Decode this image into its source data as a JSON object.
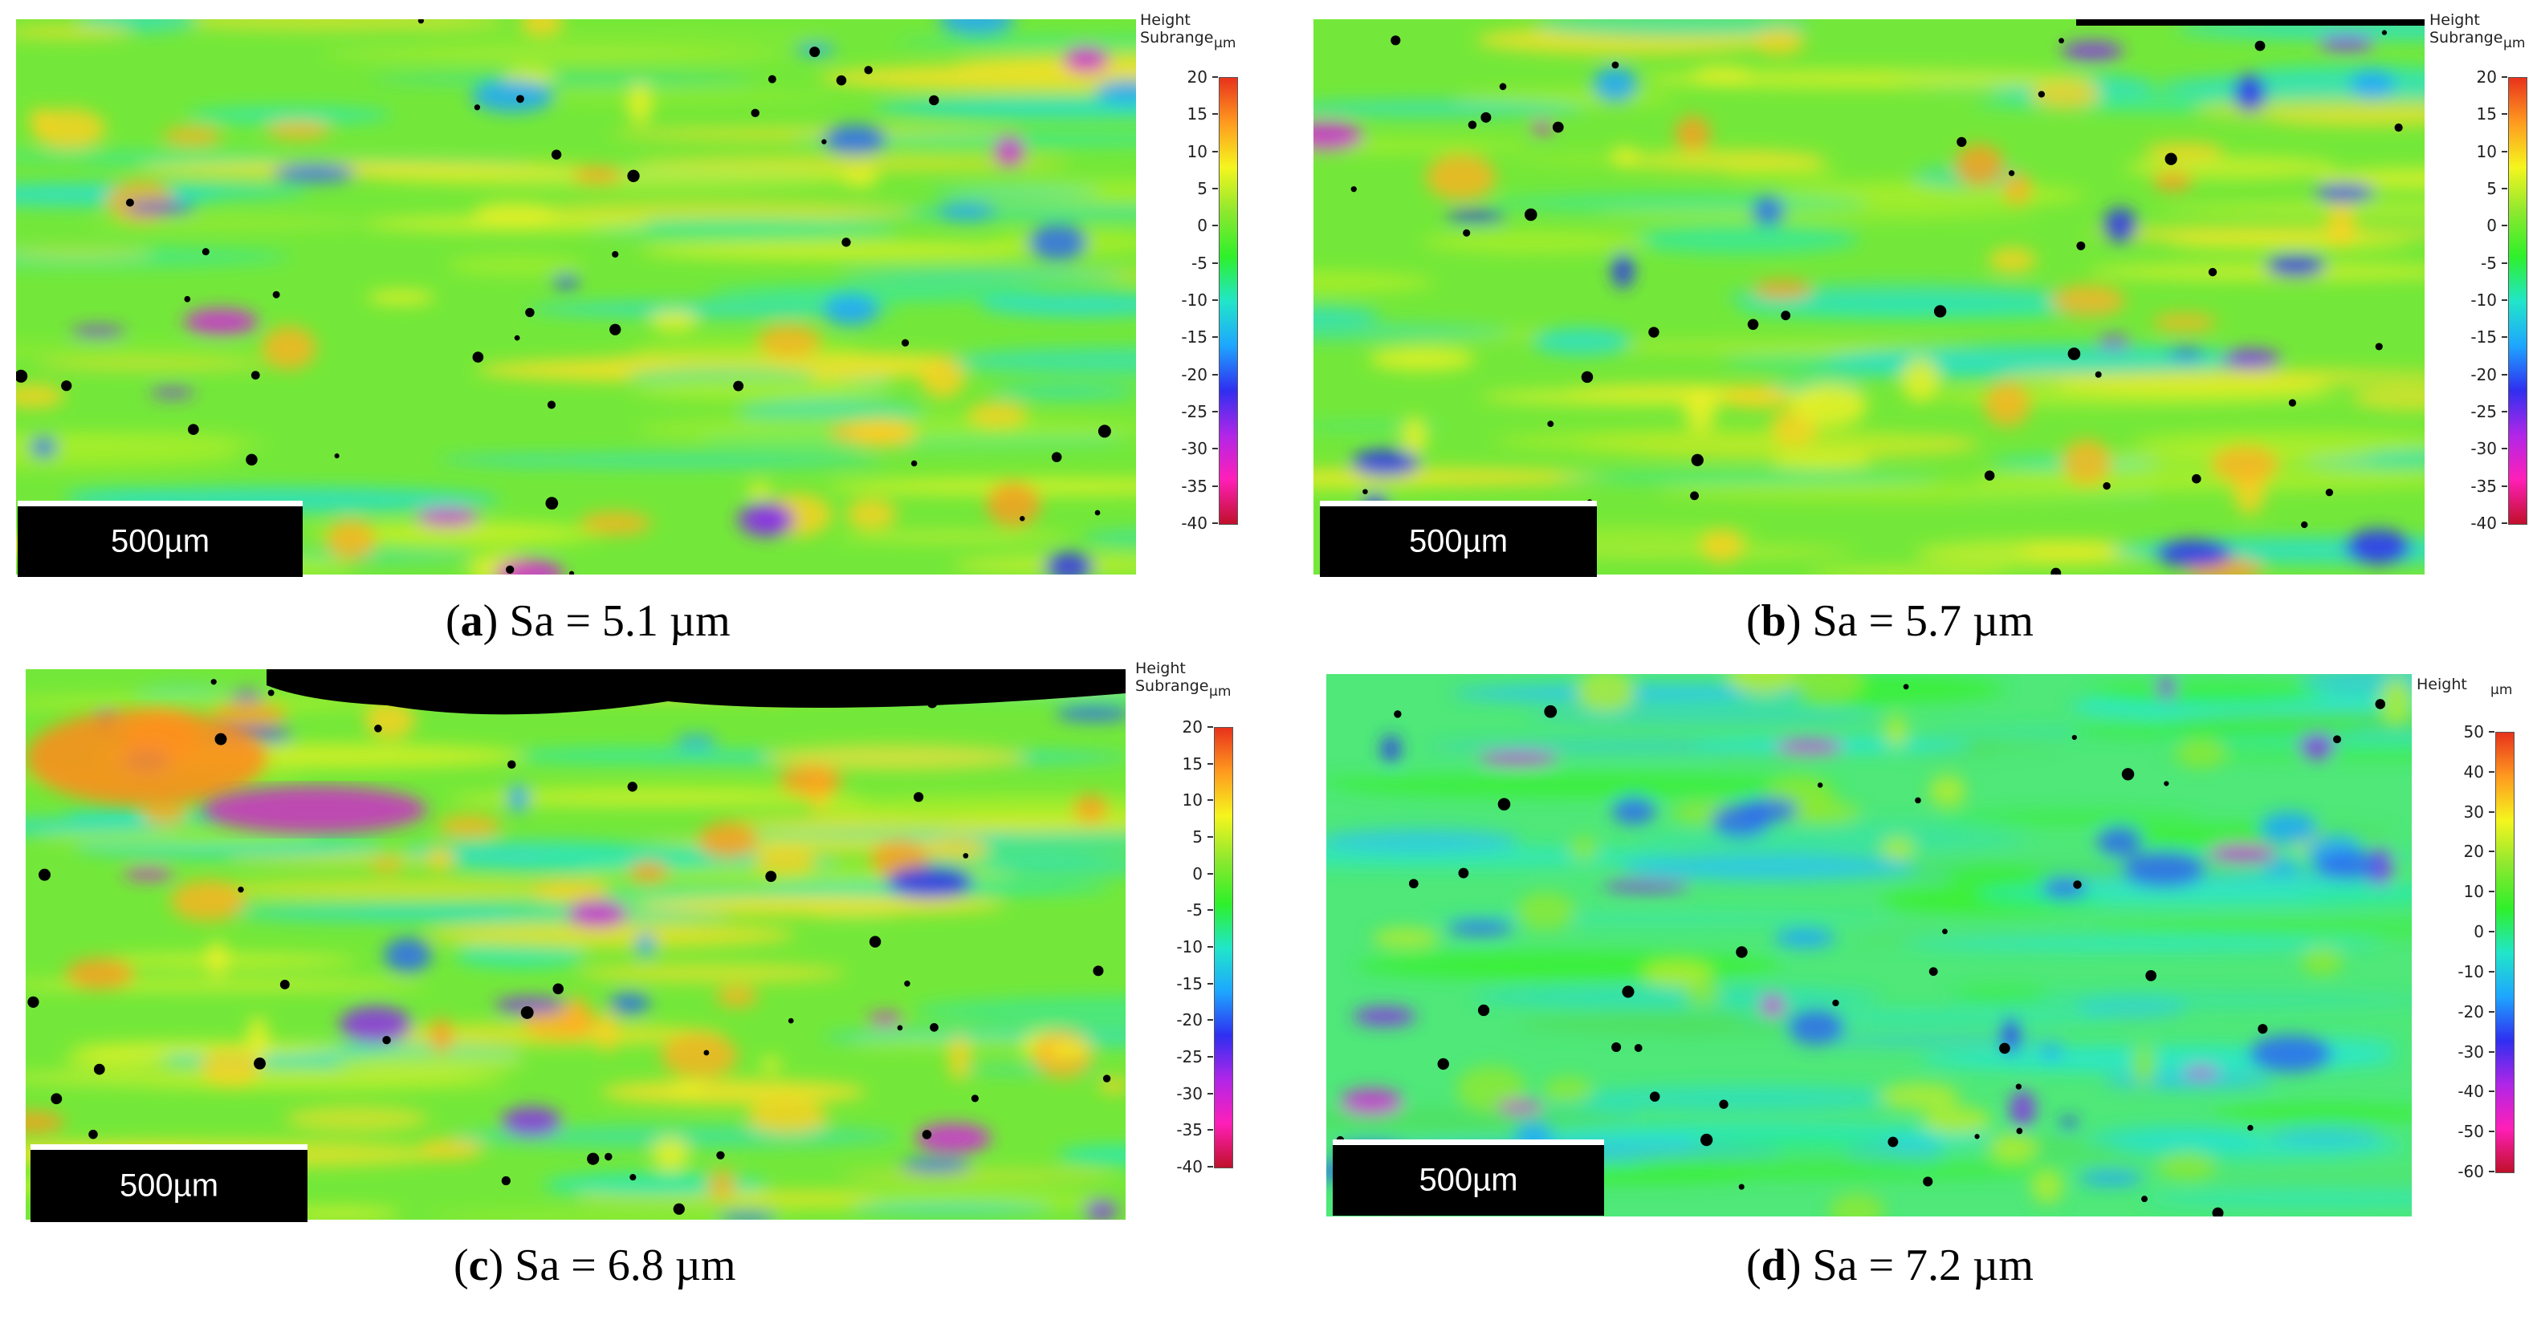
{
  "panels": [
    {
      "id": "a",
      "scalebar_label": "500µm",
      "legend_title_lines": [
        "Height",
        "Subrange"
      ],
      "legend_unit": "µm",
      "legend_ticks": [
        "20",
        "15",
        "10",
        "5",
        "0",
        "-5",
        "-10",
        "-15",
        "-20",
        "-25",
        "-30",
        "-35",
        "-40"
      ],
      "caption_letter": "a",
      "caption_text": " Sa = 5.1 µm"
    },
    {
      "id": "b",
      "scalebar_label": "500µm",
      "legend_title_lines": [
        "Height",
        "Subrange"
      ],
      "legend_unit": "µm",
      "legend_ticks": [
        "20",
        "15",
        "10",
        "5",
        "0",
        "-5",
        "-10",
        "-15",
        "-20",
        "-25",
        "-30",
        "-35",
        "-40"
      ],
      "caption_letter": "b",
      "caption_text": " Sa = 5.7 µm"
    },
    {
      "id": "c",
      "scalebar_label": "500µm",
      "legend_title_lines": [
        "Height",
        "Subrange"
      ],
      "legend_unit": "µm",
      "legend_ticks": [
        "20",
        "15",
        "10",
        "5",
        "0",
        "-5",
        "-10",
        "-15",
        "-20",
        "-25",
        "-30",
        "-35",
        "-40"
      ],
      "caption_letter": "c",
      "caption_text": " Sa = 6.8 µm"
    },
    {
      "id": "d",
      "scalebar_label": "500µm",
      "legend_title_lines": [
        "Height",
        ""
      ],
      "legend_unit": "µm",
      "legend_ticks": [
        "50",
        "40",
        "30",
        "20",
        "10",
        "0",
        "-10",
        "-20",
        "-30",
        "-40",
        "-50",
        "-60"
      ],
      "caption_letter": "d",
      "caption_text": " Sa = 7.2 µm"
    }
  ],
  "colormap": [
    "#e8321c",
    "#ff9a1f",
    "#f5f51e",
    "#8ee82f",
    "#2ff02a",
    "#21e6c8",
    "#1ea6ff",
    "#2f2ff0",
    "#b026e8",
    "#ff1fb8",
    "#c0102a"
  ]
}
